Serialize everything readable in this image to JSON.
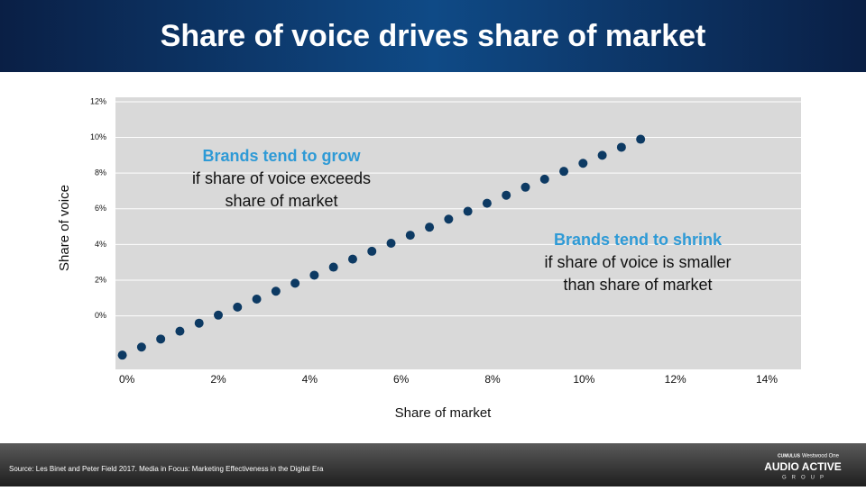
{
  "chart_data": {
    "type": "scatter",
    "title": "Share of voice drives share of market",
    "x_label": "Share of market",
    "y_label": "Share of voice",
    "x": [
      -0.1,
      0.32,
      0.74,
      1.16,
      1.58,
      2.0,
      2.42,
      2.84,
      3.26,
      3.68,
      4.1,
      4.52,
      4.94,
      5.36,
      5.78,
      6.2,
      6.62,
      7.04,
      7.46,
      7.88,
      8.3,
      8.72,
      9.14,
      9.56,
      9.98,
      10.4,
      10.82,
      11.24
    ],
    "values": [
      -2.2,
      -1.75,
      -1.3,
      -0.86,
      -0.41,
      0.04,
      0.49,
      0.94,
      1.38,
      1.83,
      2.28,
      2.73,
      3.18,
      3.62,
      4.07,
      4.52,
      4.97,
      5.42,
      5.86,
      6.31,
      6.76,
      7.21,
      7.66,
      8.1,
      8.55,
      9.0,
      9.45,
      9.9
    ],
    "color": "#0d3a63",
    "xlim": [
      -0.25,
      14.75
    ],
    "ylim": [
      -3,
      12.25
    ],
    "xticks": [
      {
        "value": 0,
        "label": "0%"
      },
      {
        "value": 2,
        "label": "2%"
      },
      {
        "value": 4,
        "label": "4%"
      },
      {
        "value": 6,
        "label": "6%"
      },
      {
        "value": 8,
        "label": "8%"
      },
      {
        "value": 10,
        "label": "10%"
      },
      {
        "value": 12,
        "label": "12%"
      },
      {
        "value": 14,
        "label": "14%"
      }
    ],
    "yticks": [
      {
        "value": 0,
        "label": "0%"
      },
      {
        "value": 2,
        "label": "2%"
      },
      {
        "value": 4,
        "label": "4%"
      },
      {
        "value": 6,
        "label": "6%"
      },
      {
        "value": 8,
        "label": "8%"
      },
      {
        "value": 10,
        "label": "10%"
      },
      {
        "value": 12,
        "label": "12%"
      }
    ],
    "grid": true,
    "annotations": [
      {
        "lines": [
          "Brands tend to grow",
          "if share of voice exceeds",
          "share of market"
        ]
      },
      {
        "lines": [
          "Brands tend to shrink",
          "if share of voice is smaller",
          "than share of market"
        ]
      }
    ]
  },
  "footer": {
    "source": "Source: Les Binet and Peter Field 2017. Media in Focus: Marketing Effectiveness in the Digital Era",
    "logo": {
      "top_left": "CUMULUS",
      "top_right": "Westwood One",
      "main": "AUDIO ACTIVE",
      "sub": "GROUP"
    }
  }
}
